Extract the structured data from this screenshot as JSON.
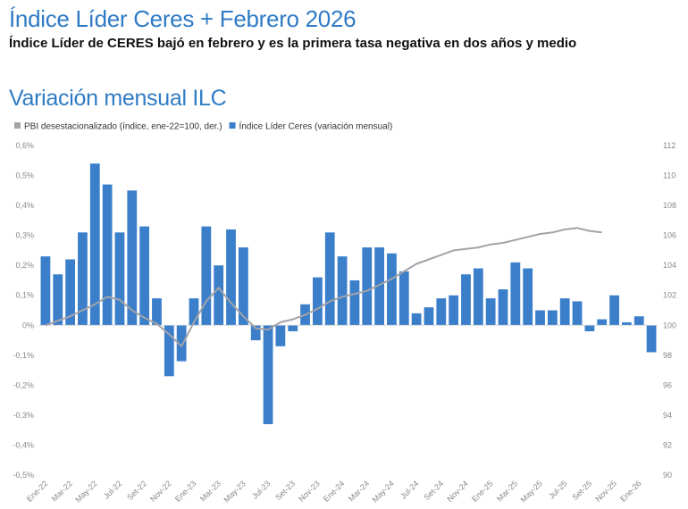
{
  "header": {
    "title": "Índice Líder Ceres + Febrero 2026",
    "subtitle": "Índice Líder de CERES bajó en febrero y es la primera tasa negativa en dos años y medio"
  },
  "chart_data": {
    "type": "bar",
    "title": "Variación mensual ILC",
    "legend": [
      {
        "key": "pbi",
        "label": "PBI desestacionalizado (índice, ene-22=100, der.)",
        "color": "#a3a3a8",
        "shape": "square"
      },
      {
        "key": "ilc",
        "label": "Índice Líder Ceres (variación mensual)",
        "color": "#3b7fcb",
        "shape": "square"
      }
    ],
    "legend_position": "top-left",
    "grid": false,
    "y_left": {
      "range": [
        -0.5,
        0.6
      ],
      "ticks": [
        -0.5,
        -0.4,
        -0.3,
        -0.2,
        -0.1,
        0,
        0.1,
        0.2,
        0.3,
        0.4,
        0.5,
        0.6
      ],
      "tick_labels": [
        "-0,5%",
        "-0,4%",
        "-0,3%",
        "-0,2%",
        "-0,1%",
        "0%",
        "0,1%",
        "0,2%",
        "0,3%",
        "0,4%",
        "0,5%",
        "0,6%"
      ]
    },
    "y_right": {
      "range": [
        90,
        112
      ],
      "ticks": [
        90,
        92,
        94,
        96,
        98,
        100,
        102,
        104,
        106,
        108,
        110,
        112
      ],
      "tick_labels": [
        "90",
        "92",
        "94",
        "96",
        "98",
        "100",
        "102",
        "104",
        "106",
        "108",
        "110",
        "112"
      ]
    },
    "x_tick_labels": [
      "Ene-22",
      "Mar-22",
      "May-22",
      "Jul-22",
      "Set-22",
      "Nov-22",
      "Ene-23",
      "Mar-23",
      "May-23",
      "Jul-23",
      "Set-23",
      "Nov-23",
      "Ene-24",
      "Mar-24",
      "May-24",
      "Jul-24",
      "Set-24",
      "Nov-24",
      "Ene-25",
      "Mar-25",
      "May-25",
      "Jul-25",
      "Set-25",
      "Nov-25",
      "Ene-26"
    ],
    "series": [
      {
        "key": "ilc",
        "name": "Índice Líder Ceres (variación mensual)",
        "type": "bar",
        "axis": "left",
        "color": "#3b7fcb",
        "values": [
          0.23,
          0.17,
          0.22,
          0.31,
          0.54,
          0.47,
          0.31,
          0.45,
          0.33,
          0.09,
          -0.17,
          -0.12,
          0.09,
          0.33,
          0.2,
          0.32,
          0.26,
          -0.05,
          -0.33,
          -0.07,
          -0.02,
          0.07,
          0.16,
          0.31,
          0.23,
          0.15,
          0.26,
          0.26,
          0.24,
          0.18,
          0.04,
          0.06,
          0.09,
          0.1,
          0.17,
          0.19,
          0.09,
          0.12,
          0.21,
          0.19,
          0.05,
          0.05,
          0.09,
          0.08,
          -0.02,
          0.02,
          0.1,
          0.01,
          0.03,
          -0.09
        ]
      },
      {
        "key": "pbi",
        "name": "PBI desestacionalizado (índice, ene-22=100, der.)",
        "type": "line",
        "axis": "right",
        "color": "#a3a3a8",
        "values": [
          100.0,
          100.3,
          100.6,
          101.0,
          101.4,
          101.9,
          101.7,
          101.0,
          100.5,
          100.1,
          99.4,
          98.6,
          100.2,
          101.6,
          102.5,
          101.5,
          100.6,
          99.8,
          99.7,
          100.2,
          100.4,
          100.7,
          101.1,
          101.6,
          101.9,
          102.1,
          102.3,
          102.7,
          103.1,
          103.6,
          104.1,
          104.4,
          104.7,
          105.0,
          105.1,
          105.2,
          105.4,
          105.5,
          105.7,
          105.9,
          106.1,
          106.2,
          106.4,
          106.5,
          106.3,
          106.2
        ]
      }
    ]
  }
}
